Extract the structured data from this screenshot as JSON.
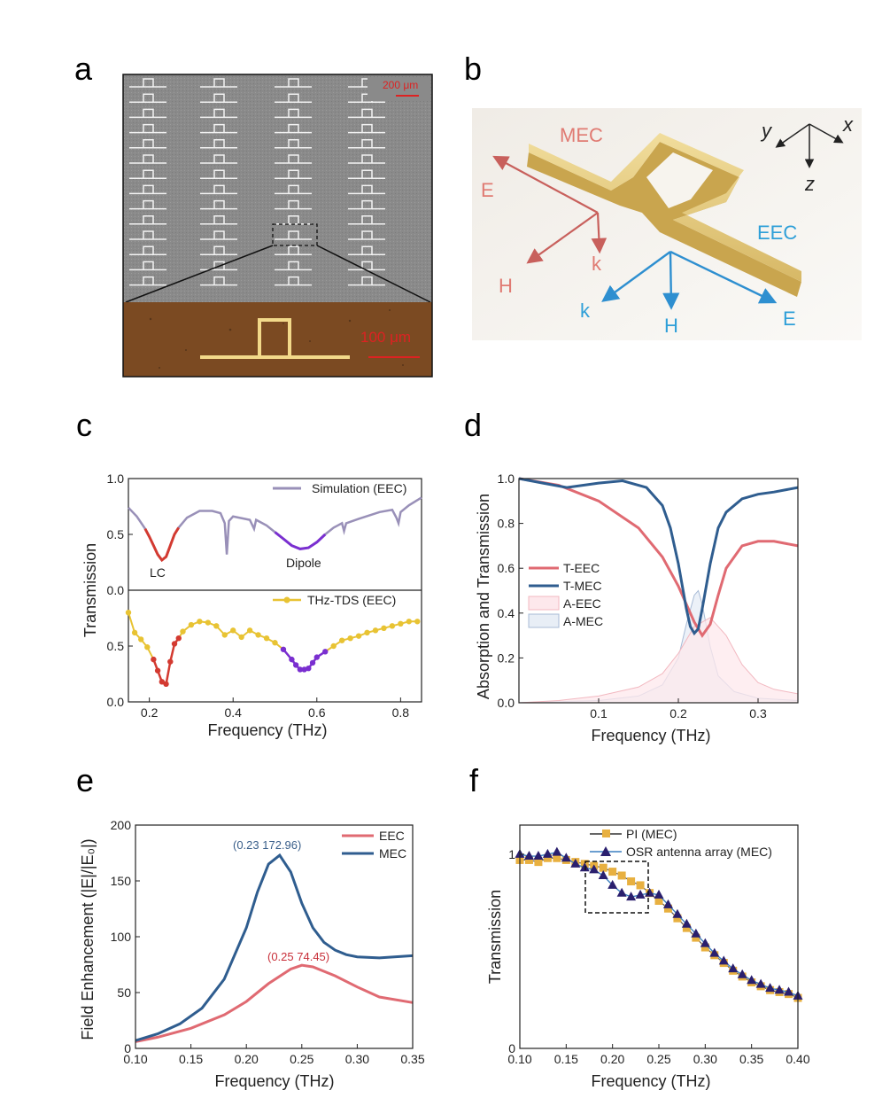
{
  "panel_labels": {
    "a": "a",
    "b": "b",
    "c": "c",
    "d": "d",
    "e": "e",
    "f": "f"
  },
  "panel_a": {
    "scale_top": "200 μm",
    "scale_bottom": "100 μm"
  },
  "panel_b": {
    "mec_label": "MEC",
    "eec_label": "EEC",
    "axes": {
      "x": "x",
      "y": "y",
      "z": "z"
    },
    "mec_vectors": {
      "E": "E",
      "H": "H",
      "k": "k"
    },
    "eec_vectors": {
      "k": "k",
      "H": "H",
      "E": "E"
    },
    "colors": {
      "mec": "#e07a72",
      "eec": "#2e9fd8",
      "structure": "#e8d08a"
    }
  },
  "chart_data": [
    {
      "id": "c",
      "type": "line",
      "xlabel": "Frequency (THz)",
      "ylabel": "Transmission",
      "xlim": [
        0.15,
        0.85
      ],
      "xticks": [
        "0.2",
        "0.4",
        "0.6",
        "0.8"
      ],
      "top": {
        "ylim": [
          0,
          1
        ],
        "yticks": [
          "0.0",
          "0.5",
          "1.0"
        ],
        "legend": "Simulation (EEC)",
        "annotations": {
          "lc": "LC",
          "dipole": "Dipole"
        },
        "x": [
          0.15,
          0.17,
          0.19,
          0.2,
          0.21,
          0.22,
          0.23,
          0.24,
          0.25,
          0.26,
          0.27,
          0.29,
          0.32,
          0.35,
          0.37,
          0.38,
          0.385,
          0.39,
          0.4,
          0.44,
          0.45,
          0.455,
          0.46,
          0.48,
          0.5,
          0.52,
          0.54,
          0.56,
          0.58,
          0.6,
          0.62,
          0.64,
          0.66,
          0.665,
          0.67,
          0.7,
          0.75,
          0.78,
          0.79,
          0.795,
          0.8,
          0.82,
          0.85
        ],
        "y": [
          0.74,
          0.66,
          0.55,
          0.48,
          0.4,
          0.32,
          0.27,
          0.3,
          0.4,
          0.5,
          0.56,
          0.65,
          0.71,
          0.71,
          0.69,
          0.6,
          0.32,
          0.62,
          0.66,
          0.63,
          0.55,
          0.63,
          0.62,
          0.58,
          0.52,
          0.46,
          0.4,
          0.37,
          0.38,
          0.43,
          0.5,
          0.56,
          0.6,
          0.53,
          0.6,
          0.64,
          0.7,
          0.72,
          0.65,
          0.6,
          0.7,
          0.76,
          0.83
        ]
      },
      "bottom": {
        "ylim": [
          0,
          1
        ],
        "yticks": [
          "0.0",
          "0.5"
        ],
        "legend": "THz-TDS (EEC)",
        "x": [
          0.15,
          0.165,
          0.18,
          0.195,
          0.21,
          0.22,
          0.23,
          0.24,
          0.25,
          0.26,
          0.27,
          0.28,
          0.3,
          0.32,
          0.34,
          0.36,
          0.38,
          0.4,
          0.42,
          0.44,
          0.46,
          0.48,
          0.5,
          0.52,
          0.54,
          0.55,
          0.56,
          0.57,
          0.58,
          0.59,
          0.6,
          0.62,
          0.64,
          0.66,
          0.68,
          0.7,
          0.72,
          0.74,
          0.76,
          0.78,
          0.8,
          0.82,
          0.84
        ],
        "y": [
          0.8,
          0.62,
          0.56,
          0.49,
          0.38,
          0.28,
          0.18,
          0.16,
          0.36,
          0.52,
          0.57,
          0.63,
          0.69,
          0.72,
          0.71,
          0.68,
          0.6,
          0.64,
          0.58,
          0.64,
          0.6,
          0.57,
          0.53,
          0.47,
          0.38,
          0.33,
          0.29,
          0.29,
          0.3,
          0.35,
          0.4,
          0.45,
          0.5,
          0.55,
          0.57,
          0.59,
          0.62,
          0.64,
          0.66,
          0.68,
          0.7,
          0.72,
          0.72
        ]
      },
      "colors": {
        "sim": "#9990b8",
        "tds": "#e8c333",
        "lc": "#d33a31",
        "dipole": "#7a2fd0"
      }
    },
    {
      "id": "d",
      "type": "line",
      "xlabel": "Frequency (THz)",
      "ylabel": "Absorption and Transmission",
      "xlim": [
        0.0,
        0.35
      ],
      "ylim": [
        0,
        1
      ],
      "xticks": [
        "0.1",
        "0.2",
        "0.3"
      ],
      "yticks": [
        "0.0",
        "0.2",
        "0.4",
        "0.6",
        "0.8",
        "1.0"
      ],
      "series": [
        {
          "name": "T-EEC",
          "color": "#e06a72",
          "x": [
            0.0,
            0.05,
            0.1,
            0.15,
            0.18,
            0.2,
            0.21,
            0.22,
            0.23,
            0.24,
            0.25,
            0.26,
            0.28,
            0.3,
            0.32,
            0.35
          ],
          "y": [
            1.0,
            0.97,
            0.9,
            0.78,
            0.65,
            0.52,
            0.44,
            0.36,
            0.3,
            0.35,
            0.48,
            0.6,
            0.7,
            0.72,
            0.72,
            0.7
          ]
        },
        {
          "name": "T-MEC",
          "color": "#2f5d8f",
          "x": [
            0.0,
            0.03,
            0.06,
            0.1,
            0.13,
            0.16,
            0.18,
            0.19,
            0.2,
            0.21,
            0.215,
            0.22,
            0.225,
            0.23,
            0.24,
            0.25,
            0.26,
            0.28,
            0.3,
            0.32,
            0.35
          ],
          "y": [
            1.0,
            0.98,
            0.96,
            0.98,
            0.99,
            0.96,
            0.88,
            0.78,
            0.62,
            0.42,
            0.34,
            0.31,
            0.33,
            0.42,
            0.62,
            0.78,
            0.85,
            0.91,
            0.93,
            0.94,
            0.96
          ]
        },
        {
          "name": "A-EEC",
          "color": "#f2b8c0",
          "x": [
            0.0,
            0.05,
            0.1,
            0.15,
            0.18,
            0.2,
            0.22,
            0.24,
            0.26,
            0.28,
            0.3,
            0.32,
            0.35
          ],
          "y": [
            0.0,
            0.01,
            0.03,
            0.07,
            0.13,
            0.22,
            0.34,
            0.38,
            0.3,
            0.17,
            0.09,
            0.06,
            0.04
          ]
        },
        {
          "name": "A-MEC",
          "color": "#a8bbd6",
          "x": [
            0.0,
            0.05,
            0.1,
            0.15,
            0.18,
            0.2,
            0.21,
            0.22,
            0.225,
            0.23,
            0.24,
            0.25,
            0.27,
            0.3,
            0.35
          ],
          "y": [
            0.0,
            0.005,
            0.01,
            0.03,
            0.08,
            0.2,
            0.35,
            0.48,
            0.5,
            0.44,
            0.25,
            0.12,
            0.05,
            0.02,
            0.01
          ]
        }
      ]
    },
    {
      "id": "e",
      "type": "line",
      "xlabel": "Frequency (THz)",
      "ylabel": "Field Enhancement (|E|/|E₀|)",
      "xlim": [
        0.1,
        0.35
      ],
      "ylim": [
        0,
        200
      ],
      "xticks": [
        "0.10",
        "0.15",
        "0.20",
        "0.25",
        "0.30",
        "0.35"
      ],
      "yticks": [
        "0",
        "50",
        "100",
        "150",
        "200"
      ],
      "annotations": [
        {
          "text": "(0.23 172.96)",
          "color": "#3a5f8a"
        },
        {
          "text": "(0.25 74.45)",
          "color": "#c8303a"
        }
      ],
      "series": [
        {
          "name": "EEC",
          "color": "#e06a72",
          "x": [
            0.1,
            0.12,
            0.15,
            0.18,
            0.2,
            0.22,
            0.24,
            0.25,
            0.26,
            0.28,
            0.3,
            0.32,
            0.35
          ],
          "y": [
            6,
            10,
            18,
            30,
            42,
            58,
            71,
            74.45,
            73,
            65,
            55,
            46,
            41
          ]
        },
        {
          "name": "MEC",
          "color": "#2f5d8f",
          "x": [
            0.1,
            0.12,
            0.14,
            0.16,
            0.18,
            0.2,
            0.21,
            0.22,
            0.23,
            0.24,
            0.25,
            0.26,
            0.27,
            0.28,
            0.29,
            0.3,
            0.32,
            0.35
          ],
          "y": [
            7,
            13,
            22,
            36,
            62,
            108,
            140,
            165,
            172.96,
            158,
            130,
            108,
            95,
            88,
            84,
            82,
            81,
            83
          ]
        }
      ]
    },
    {
      "id": "f",
      "type": "line",
      "xlabel": "Frequency (THz)",
      "ylabel": "Transmission",
      "xlim": [
        0.1,
        0.4
      ],
      "ylim": [
        0,
        1.15
      ],
      "xticks": [
        "0.10",
        "0.15",
        "0.20",
        "0.25",
        "0.30",
        "0.35",
        "0.40"
      ],
      "yticks": [
        "0",
        "1"
      ],
      "series": [
        {
          "name": "PI (MEC)",
          "color": "#e8b040",
          "marker": "square",
          "x": [
            0.1,
            0.11,
            0.12,
            0.13,
            0.14,
            0.15,
            0.16,
            0.17,
            0.18,
            0.19,
            0.2,
            0.21,
            0.22,
            0.23,
            0.24,
            0.25,
            0.26,
            0.27,
            0.28,
            0.29,
            0.3,
            0.31,
            0.32,
            0.33,
            0.34,
            0.35,
            0.36,
            0.37,
            0.38,
            0.39,
            0.4
          ],
          "y": [
            0.97,
            0.97,
            0.96,
            0.98,
            0.98,
            0.97,
            0.96,
            0.95,
            0.94,
            0.93,
            0.91,
            0.89,
            0.86,
            0.84,
            0.8,
            0.76,
            0.72,
            0.67,
            0.62,
            0.57,
            0.52,
            0.48,
            0.44,
            0.4,
            0.37,
            0.34,
            0.32,
            0.3,
            0.29,
            0.28,
            0.26
          ]
        },
        {
          "name": "OSR antenna array (MEC)",
          "color": "#2a1f6e",
          "marker": "triangle",
          "x": [
            0.1,
            0.11,
            0.12,
            0.13,
            0.14,
            0.15,
            0.16,
            0.17,
            0.18,
            0.19,
            0.2,
            0.21,
            0.22,
            0.23,
            0.24,
            0.25,
            0.26,
            0.27,
            0.28,
            0.29,
            0.3,
            0.31,
            0.32,
            0.33,
            0.34,
            0.35,
            0.36,
            0.37,
            0.38,
            0.39,
            0.4
          ],
          "y": [
            1.0,
            0.99,
            0.99,
            1.0,
            1.01,
            0.98,
            0.95,
            0.93,
            0.92,
            0.89,
            0.84,
            0.8,
            0.78,
            0.79,
            0.8,
            0.79,
            0.74,
            0.69,
            0.64,
            0.59,
            0.54,
            0.49,
            0.45,
            0.41,
            0.38,
            0.35,
            0.33,
            0.31,
            0.3,
            0.29,
            0.27
          ]
        }
      ]
    }
  ]
}
